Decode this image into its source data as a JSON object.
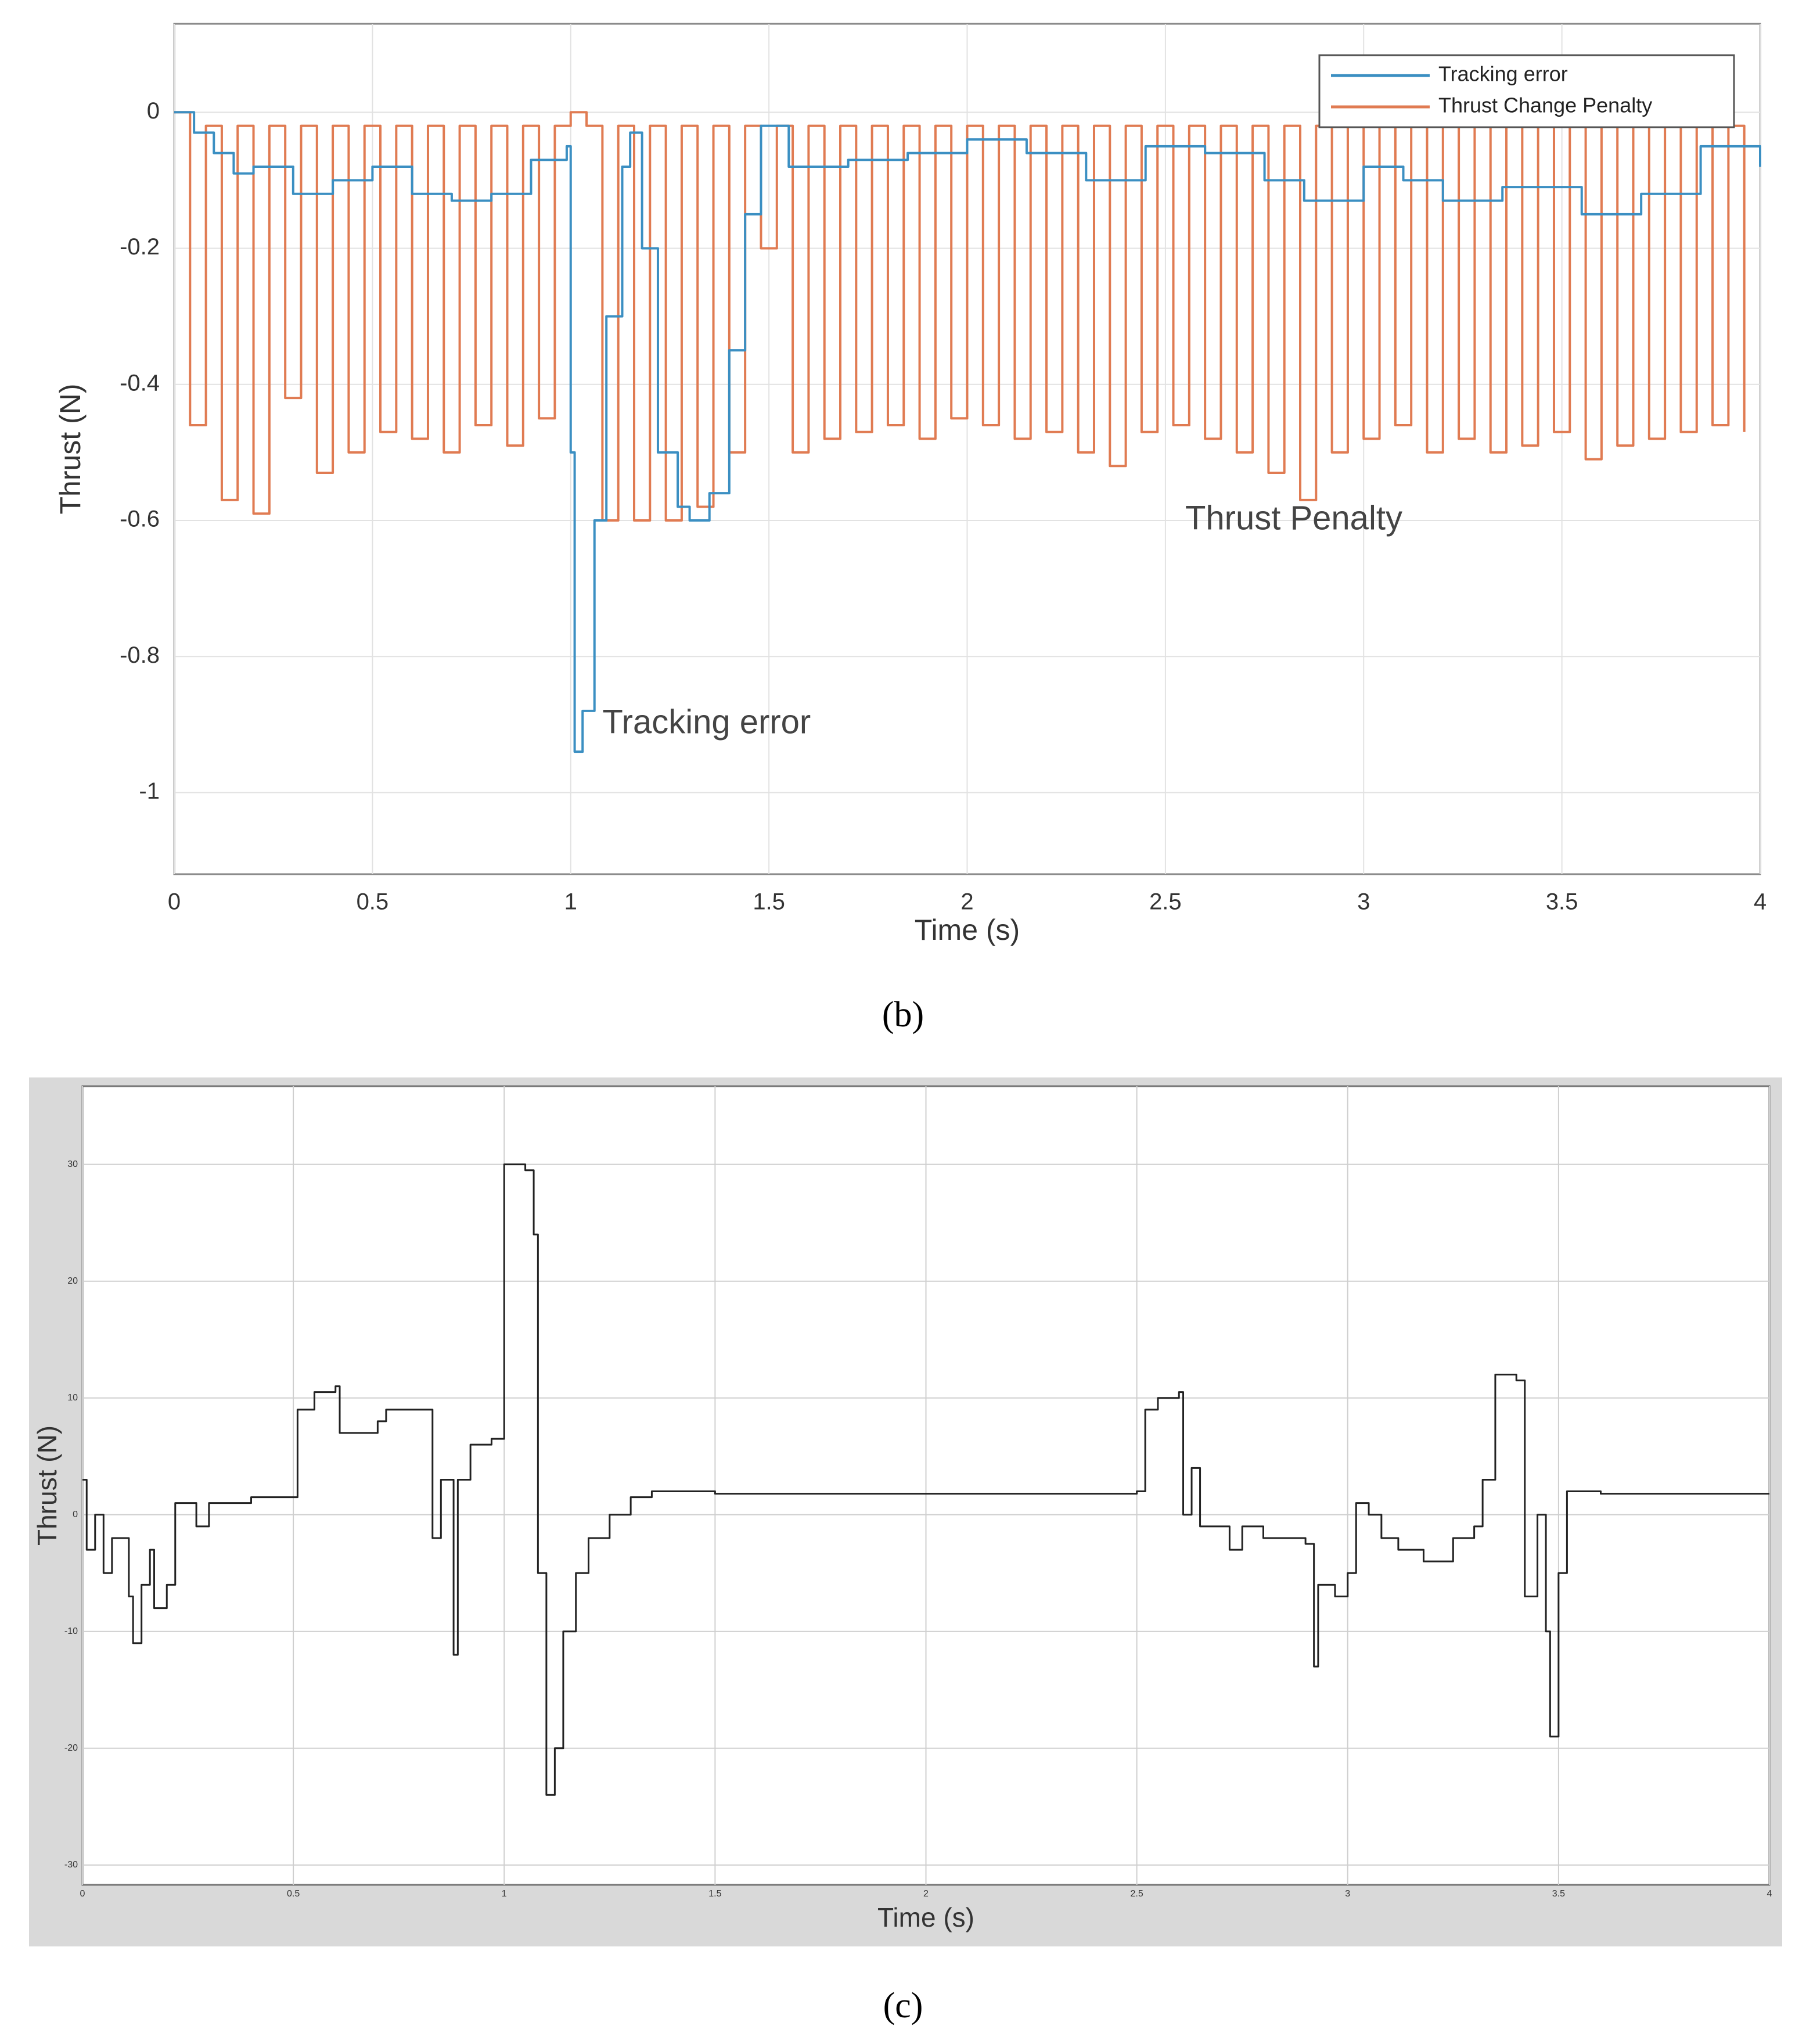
{
  "chart_data": [
    {
      "type": "line",
      "step": true,
      "caption": "(b)",
      "xlabel": "Time (s)",
      "ylabel": "Thrust (N)",
      "xlim": [
        0,
        4
      ],
      "ylim": [
        -1.12,
        0.13
      ],
      "xticks": [
        0,
        0.5,
        1,
        1.5,
        2,
        2.5,
        3,
        3.5,
        4
      ],
      "yticks": [
        0,
        -0.2,
        -0.4,
        -0.6,
        -0.8,
        -1
      ],
      "grid": true,
      "legend": "upper right",
      "annotations": [
        {
          "text": "Tracking error",
          "x": 1.08,
          "y": -0.9
        },
        {
          "text": "Thrust Penalty",
          "x": 2.55,
          "y": -0.6
        }
      ],
      "series": [
        {
          "name": "Tracking error",
          "color": "#3b8fc2",
          "x": [
            0,
            0.05,
            0.1,
            0.15,
            0.2,
            0.3,
            0.4,
            0.5,
            0.6,
            0.7,
            0.8,
            0.9,
            0.99,
            1.0,
            1.01,
            1.03,
            1.06,
            1.09,
            1.13,
            1.15,
            1.18,
            1.22,
            1.27,
            1.3,
            1.35,
            1.4,
            1.44,
            1.48,
            1.55,
            1.7,
            1.85,
            2.0,
            2.15,
            2.3,
            2.45,
            2.6,
            2.75,
            2.85,
            3.0,
            3.1,
            3.2,
            3.35,
            3.55,
            3.7,
            3.85,
            4.0
          ],
          "values": [
            0,
            -0.03,
            -0.06,
            -0.09,
            -0.08,
            -0.12,
            -0.1,
            -0.08,
            -0.12,
            -0.13,
            -0.12,
            -0.07,
            -0.05,
            -0.5,
            -0.94,
            -0.88,
            -0.6,
            -0.3,
            -0.08,
            -0.03,
            -0.2,
            -0.5,
            -0.58,
            -0.6,
            -0.56,
            -0.35,
            -0.15,
            -0.02,
            -0.08,
            -0.07,
            -0.06,
            -0.04,
            -0.06,
            -0.1,
            -0.05,
            -0.06,
            -0.1,
            -0.13,
            -0.08,
            -0.1,
            -0.13,
            -0.11,
            -0.15,
            -0.12,
            -0.05,
            -0.08
          ]
        },
        {
          "name": "Thrust Change Penalty",
          "color": "#e07b52",
          "x": [
            0,
            0.04,
            0.08,
            0.12,
            0.16,
            0.2,
            0.24,
            0.28,
            0.32,
            0.36,
            0.4,
            0.44,
            0.48,
            0.52,
            0.56,
            0.6,
            0.64,
            0.68,
            0.72,
            0.76,
            0.8,
            0.84,
            0.88,
            0.92,
            0.96,
            1.0,
            1.04,
            1.08,
            1.12,
            1.16,
            1.2,
            1.24,
            1.28,
            1.32,
            1.36,
            1.4,
            1.44,
            1.48,
            1.52,
            1.56,
            1.6,
            1.64,
            1.68,
            1.72,
            1.76,
            1.8,
            1.84,
            1.88,
            1.92,
            1.96,
            2.0,
            2.04,
            2.08,
            2.12,
            2.16,
            2.2,
            2.24,
            2.28,
            2.32,
            2.36,
            2.4,
            2.44,
            2.48,
            2.52,
            2.56,
            2.6,
            2.64,
            2.68,
            2.72,
            2.76,
            2.8,
            2.84,
            2.88,
            2.92,
            2.96,
            3.0,
            3.04,
            3.08,
            3.12,
            3.16,
            3.2,
            3.24,
            3.28,
            3.32,
            3.36,
            3.4,
            3.44,
            3.48,
            3.52,
            3.56,
            3.6,
            3.64,
            3.68,
            3.72,
            3.76,
            3.8,
            3.84,
            3.88,
            3.92,
            3.96
          ],
          "values": [
            0,
            -0.46,
            -0.02,
            -0.57,
            -0.02,
            -0.59,
            -0.02,
            -0.42,
            -0.02,
            -0.53,
            -0.02,
            -0.5,
            -0.02,
            -0.47,
            -0.02,
            -0.48,
            -0.02,
            -0.5,
            -0.02,
            -0.46,
            -0.02,
            -0.49,
            -0.02,
            -0.45,
            -0.02,
            0,
            -0.02,
            -0.6,
            -0.02,
            -0.6,
            -0.02,
            -0.6,
            -0.02,
            -0.58,
            -0.02,
            -0.5,
            -0.02,
            -0.2,
            -0.02,
            -0.5,
            -0.02,
            -0.48,
            -0.02,
            -0.47,
            -0.02,
            -0.46,
            -0.02,
            -0.48,
            -0.02,
            -0.45,
            -0.02,
            -0.46,
            -0.02,
            -0.48,
            -0.02,
            -0.47,
            -0.02,
            -0.5,
            -0.02,
            -0.52,
            -0.02,
            -0.47,
            -0.02,
            -0.46,
            -0.02,
            -0.48,
            -0.02,
            -0.5,
            -0.02,
            -0.53,
            -0.02,
            -0.57,
            -0.02,
            -0.5,
            -0.02,
            -0.48,
            -0.02,
            -0.46,
            -0.02,
            -0.5,
            -0.02,
            -0.48,
            -0.02,
            -0.5,
            -0.02,
            -0.49,
            -0.02,
            -0.47,
            -0.02,
            -0.51,
            -0.02,
            -0.49,
            -0.02,
            -0.48,
            -0.02,
            -0.47,
            -0.02,
            -0.46,
            -0.02,
            -0.47
          ]
        }
      ]
    },
    {
      "type": "line",
      "step": true,
      "caption": "(c)",
      "xlabel": "Time (s)",
      "ylabel": "Thrust  (N)",
      "color": "#222222",
      "xlim": [
        0,
        4
      ],
      "ylim": [
        -31.7,
        36.7
      ],
      "xticks": [
        0,
        0.5,
        1,
        1.5,
        2,
        2.5,
        3,
        3.5,
        4
      ],
      "yticks": [
        -30,
        -20,
        -10,
        0,
        10,
        20,
        30
      ],
      "grid": true,
      "x": [
        0,
        0.01,
        0.03,
        0.05,
        0.07,
        0.1,
        0.11,
        0.12,
        0.14,
        0.16,
        0.17,
        0.19,
        0.2,
        0.22,
        0.25,
        0.27,
        0.3,
        0.33,
        0.4,
        0.5,
        0.51,
        0.55,
        0.6,
        0.61,
        0.65,
        0.7,
        0.72,
        0.8,
        0.83,
        0.85,
        0.88,
        0.89,
        0.92,
        0.97,
        1.0,
        1.05,
        1.07,
        1.08,
        1.1,
        1.12,
        1.14,
        1.17,
        1.2,
        1.25,
        1.3,
        1.35,
        1.5,
        2.5,
        2.52,
        2.55,
        2.6,
        2.61,
        2.63,
        2.65,
        2.7,
        2.72,
        2.75,
        2.8,
        2.9,
        2.92,
        2.93,
        2.97,
        3.0,
        3.02,
        3.05,
        3.08,
        3.12,
        3.18,
        3.25,
        3.3,
        3.32,
        3.35,
        3.4,
        3.42,
        3.45,
        3.47,
        3.48,
        3.5,
        3.52,
        3.6,
        4.0
      ],
      "values": [
        3,
        -3,
        0,
        -5,
        -2,
        -2,
        -7,
        -11,
        -6,
        -3,
        -8,
        -8,
        -6,
        1,
        1,
        -1,
        1,
        1,
        1.5,
        1.5,
        9,
        10.5,
        11,
        7,
        7,
        8,
        9,
        9,
        -2,
        3,
        -12,
        3,
        6,
        6.5,
        30,
        29.5,
        24,
        -5,
        -24,
        -20,
        -10,
        -5,
        -2,
        0,
        1.5,
        2,
        1.8,
        2,
        9,
        10,
        10.5,
        0,
        4,
        -1,
        -1,
        -3,
        -1,
        -2,
        -2.5,
        -13,
        -6,
        -7,
        -5,
        1,
        0,
        -2,
        -3,
        -4,
        -2,
        -1,
        3,
        12,
        11.5,
        -7,
        0,
        -10,
        -19,
        -5,
        2,
        1.8,
        1.8
      ]
    }
  ]
}
